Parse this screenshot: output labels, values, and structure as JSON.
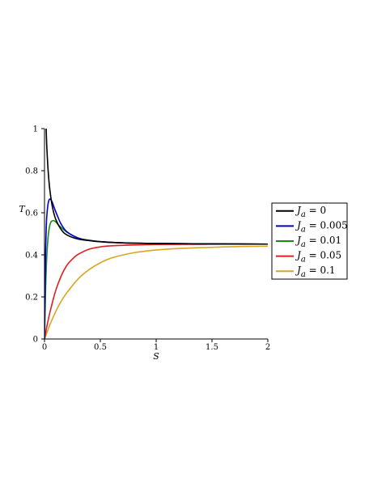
{
  "chart_data": {
    "type": "line",
    "title": "",
    "xlabel": "S",
    "ylabel": "T",
    "xlim": [
      0,
      2
    ],
    "ylim": [
      0,
      1
    ],
    "xticks": [
      0,
      0.5,
      1,
      1.5,
      2
    ],
    "xtick_labels": [
      "0",
      "0.5",
      "1",
      "1.5",
      "2"
    ],
    "yticks": [
      0,
      0.2,
      0.4,
      0.6,
      0.8,
      1
    ],
    "ytick_labels": [
      "0",
      "0.2",
      "0.4",
      "0.6",
      "0.8",
      "1"
    ],
    "grid": false,
    "legend_position": "right",
    "series": [
      {
        "name": "J_a = 0",
        "name_base": "J",
        "name_sub": "a",
        "name_value": " = 0",
        "color": "#000000",
        "x": [
          0.015,
          0.02,
          0.03,
          0.04,
          0.05,
          0.07,
          0.1,
          0.15,
          0.2,
          0.3,
          0.4,
          0.5,
          0.7,
          1.0,
          1.5,
          2.0
        ],
        "y": [
          1.0,
          0.92,
          0.82,
          0.75,
          0.7,
          0.63,
          0.57,
          0.52,
          0.495,
          0.475,
          0.468,
          0.462,
          0.457,
          0.454,
          0.452,
          0.451
        ]
      },
      {
        "name": "J_a = 0.005",
        "name_base": "J",
        "name_sub": "a",
        "name_value": " = 0.005",
        "color": "#0000cc",
        "x": [
          0,
          0.005,
          0.01,
          0.015,
          0.02,
          0.03,
          0.04,
          0.05,
          0.06,
          0.07,
          0.09,
          0.12,
          0.15,
          0.2,
          0.3,
          0.4,
          0.5,
          0.7,
          1.0,
          1.5,
          2.0
        ],
        "y": [
          0,
          0.25,
          0.42,
          0.52,
          0.58,
          0.635,
          0.66,
          0.665,
          0.66,
          0.65,
          0.62,
          0.58,
          0.545,
          0.51,
          0.48,
          0.469,
          0.463,
          0.457,
          0.454,
          0.452,
          0.451
        ]
      },
      {
        "name": "J_a = 0.01",
        "name_base": "J",
        "name_sub": "a",
        "name_value": " = 0.01",
        "color": "#1a8a1a",
        "x": [
          0,
          0.01,
          0.02,
          0.03,
          0.04,
          0.05,
          0.06,
          0.08,
          0.1,
          0.12,
          0.15,
          0.2,
          0.3,
          0.4,
          0.5,
          0.7,
          1.0,
          1.5,
          2.0
        ],
        "y": [
          0,
          0.24,
          0.39,
          0.47,
          0.52,
          0.545,
          0.558,
          0.563,
          0.557,
          0.545,
          0.53,
          0.508,
          0.481,
          0.469,
          0.463,
          0.457,
          0.454,
          0.452,
          0.451
        ]
      },
      {
        "name": "J_a = 0.05",
        "name_base": "J",
        "name_sub": "a",
        "name_value": " = 0.05",
        "color": "#e02020",
        "x": [
          0,
          0.025,
          0.05,
          0.1,
          0.15,
          0.2,
          0.25,
          0.3,
          0.4,
          0.5,
          0.6,
          0.8,
          1.0,
          1.3,
          1.6,
          2.0
        ],
        "y": [
          0,
          0.07,
          0.13,
          0.23,
          0.3,
          0.35,
          0.38,
          0.402,
          0.427,
          0.438,
          0.443,
          0.447,
          0.449,
          0.45,
          0.451,
          0.451
        ]
      },
      {
        "name": "J_a = 0.1",
        "name_base": "J",
        "name_sub": "a",
        "name_value": " = 0.1",
        "color": "#daa520",
        "x": [
          0,
          0.05,
          0.1,
          0.15,
          0.2,
          0.3,
          0.4,
          0.5,
          0.6,
          0.8,
          1.0,
          1.2,
          1.5,
          1.8,
          2.0
        ],
        "y": [
          0,
          0.07,
          0.13,
          0.18,
          0.22,
          0.285,
          0.33,
          0.362,
          0.385,
          0.41,
          0.423,
          0.43,
          0.436,
          0.44,
          0.441
        ]
      }
    ]
  }
}
